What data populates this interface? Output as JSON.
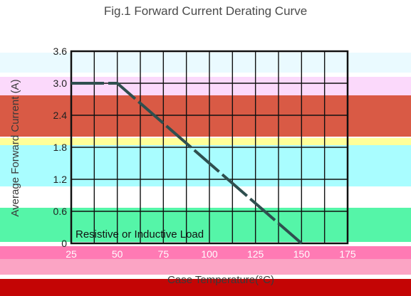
{
  "chart_data": {
    "type": "line",
    "title": "Fig.1  Forward Current Derating Curve",
    "xlabel": "Case Temperature(°C)",
    "ylabel": "Average Forward Current (A)",
    "x_tick_labels": [
      "25",
      "50",
      "75",
      "100",
      "125",
      "150",
      "175"
    ],
    "y_tick_labels": [
      "0",
      "0.6",
      "1.2",
      "1.8",
      "2.4",
      "3.0",
      "3.6"
    ],
    "xlim": [
      25,
      175
    ],
    "ylim": [
      0,
      3.6
    ],
    "grid": true,
    "annotation": "Resistive or Inductive Load",
    "series": [
      {
        "x": [
          25,
          50,
          150
        ],
        "y": [
          3.0,
          3.0,
          0
        ]
      }
    ]
  },
  "colors": {
    "curve": "#2f4f4f",
    "grid": "#111111",
    "band_pink": "#f7d7f7",
    "band_red": "#d9503f",
    "band_yellow": "#ffff99",
    "band_cyan": "#a8ffff",
    "band_green": "#66ff99",
    "band_magenta": "#ff88bb",
    "band_darkred": "#c00000"
  }
}
